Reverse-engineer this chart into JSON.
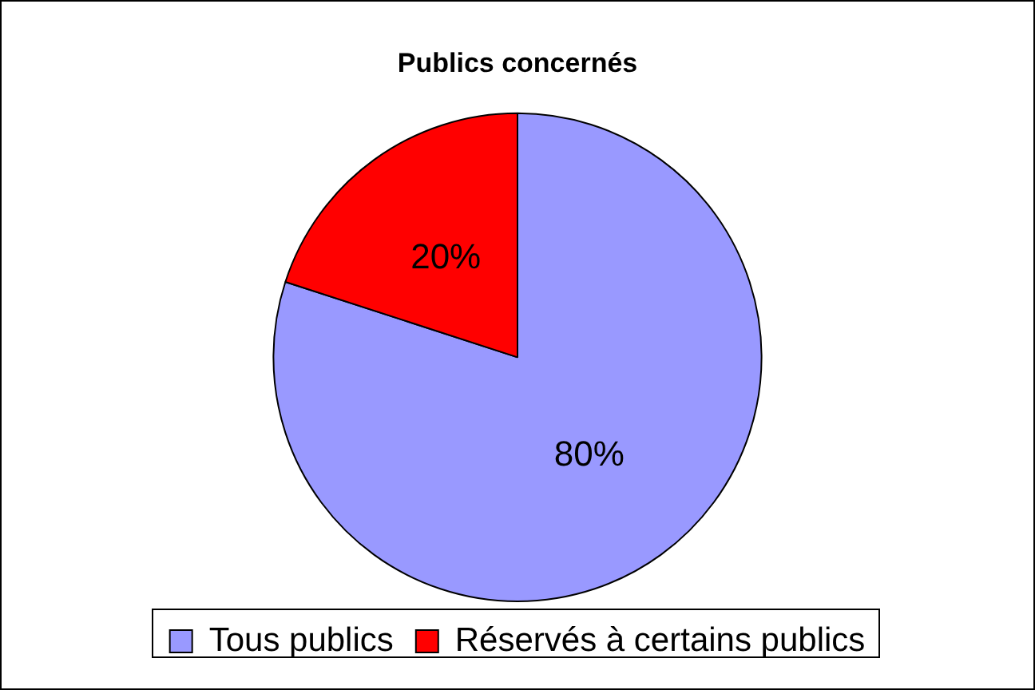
{
  "chart_data": {
    "type": "pie",
    "title": "Publics concernés",
    "categories": [
      "Tous publics",
      "Réservés à certains publics"
    ],
    "values": [
      80,
      20
    ],
    "colors": [
      "#9999ff",
      "#ff0000"
    ],
    "value_labels": [
      "80%",
      "20%"
    ],
    "legend": "bottom"
  }
}
